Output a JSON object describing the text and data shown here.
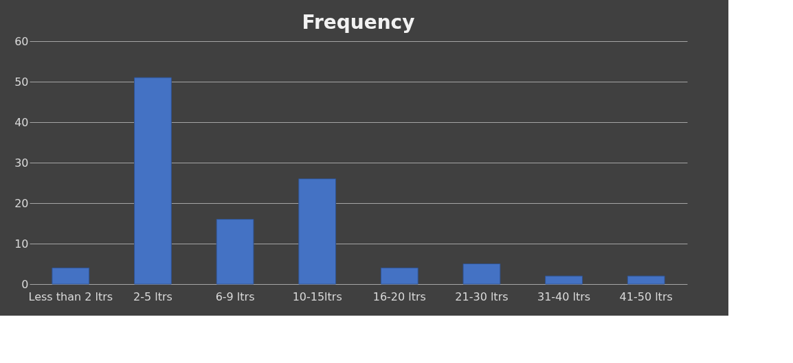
{
  "chart_data": {
    "type": "bar",
    "title": "Frequency",
    "categories": [
      "Less than 2 ltrs",
      "2-5 ltrs",
      "6-9 ltrs",
      "10-15ltrs",
      "16-20 ltrs",
      "21-30 ltrs",
      "31-40 ltrs",
      "41-50 ltrs"
    ],
    "values": [
      4,
      51,
      16,
      26,
      4,
      5,
      2,
      2
    ],
    "color": "#4472c4",
    "ylim": [
      0,
      60
    ],
    "yticks": [
      0,
      10,
      20,
      30,
      40,
      50,
      60
    ],
    "grid": "y"
  }
}
